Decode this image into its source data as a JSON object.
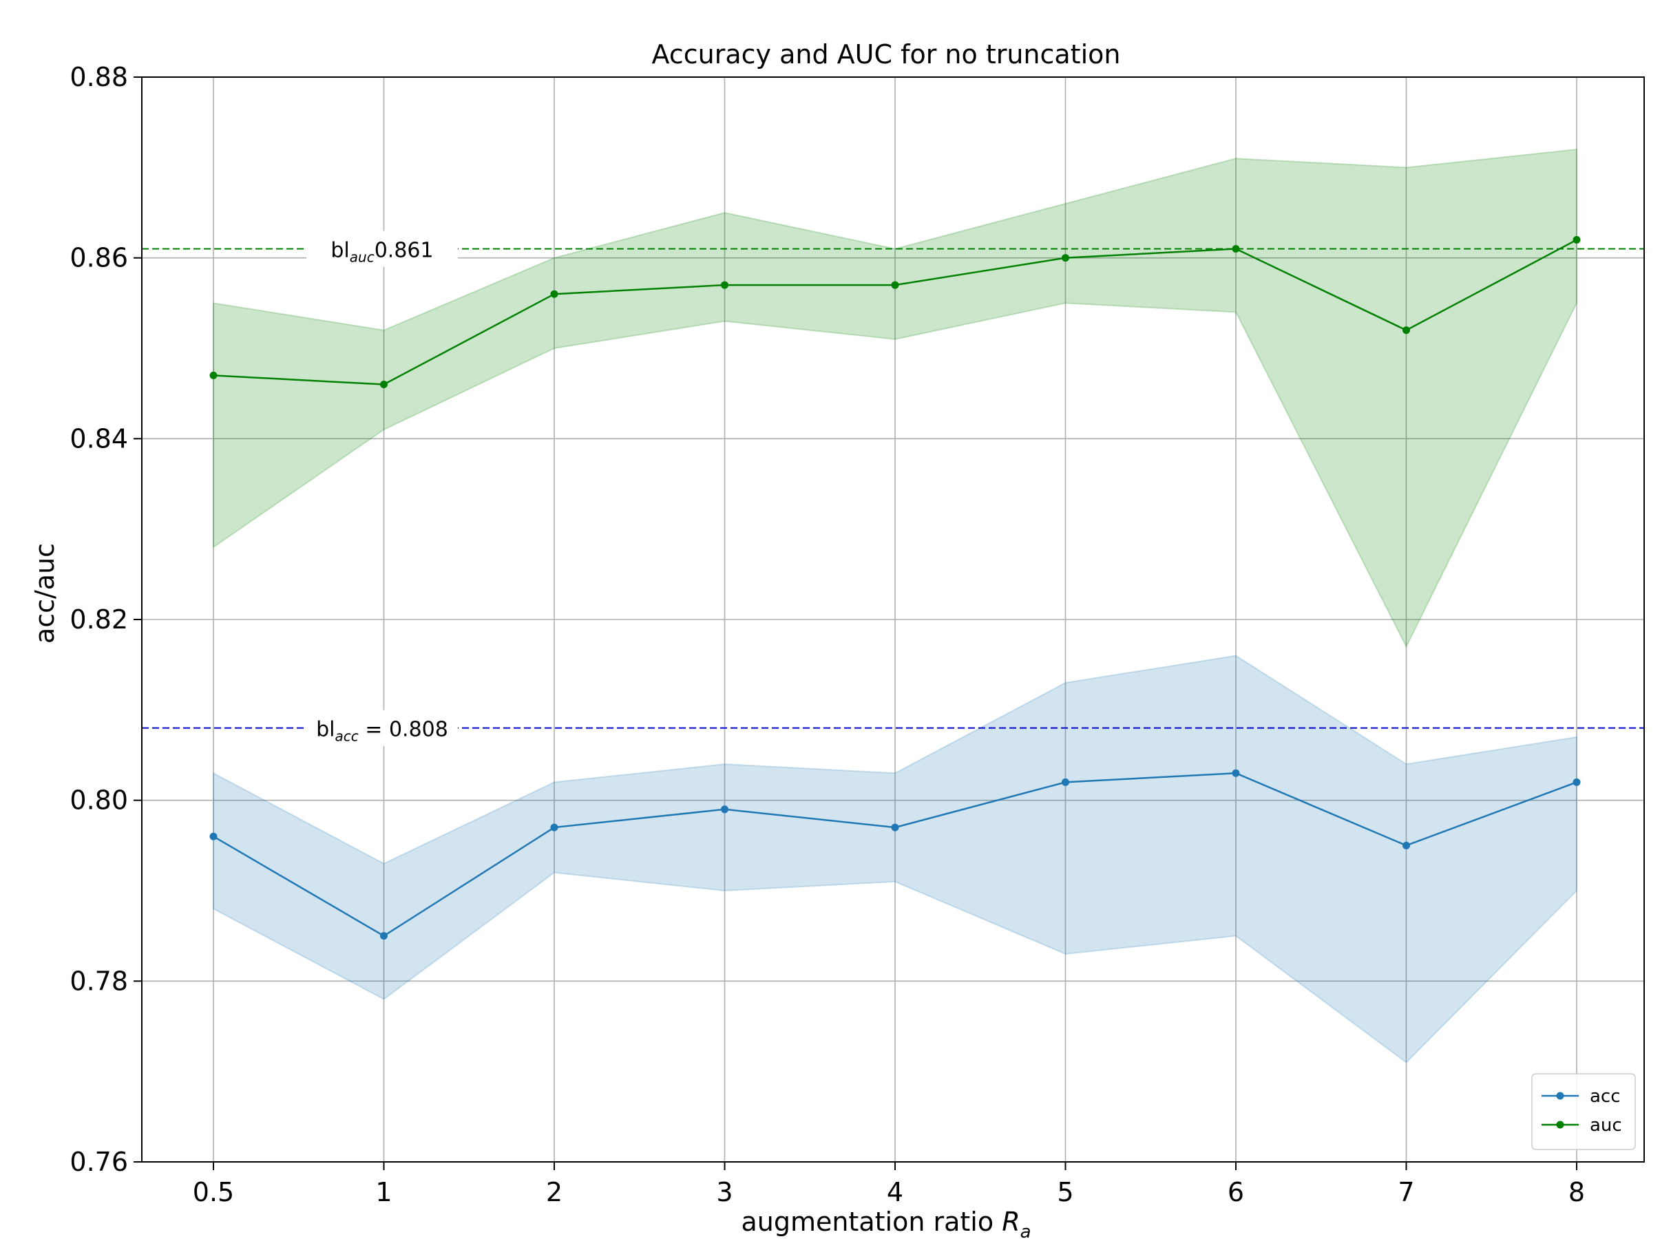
{
  "chart_data": {
    "type": "line",
    "title": "Accuracy and AUC for no truncation",
    "xlabel": "augmentation ratio",
    "xlabel_symbol": "R",
    "xlabel_subscript": "a",
    "ylabel": "acc/auc",
    "categories": [
      "0.5",
      "1",
      "2",
      "3",
      "4",
      "5",
      "6",
      "7",
      "8"
    ],
    "ylim": [
      0.76,
      0.88
    ],
    "yticks": [
      "0.76",
      "0.78",
      "0.80",
      "0.82",
      "0.84",
      "0.86",
      "0.88"
    ],
    "grid": true,
    "legend_position": "lower-right",
    "series": [
      {
        "name": "acc",
        "color": "#1f77b4",
        "values": [
          0.796,
          0.785,
          0.797,
          0.799,
          0.797,
          0.802,
          0.803,
          0.795,
          0.802
        ],
        "band_lower": [
          0.788,
          0.778,
          0.792,
          0.79,
          0.791,
          0.783,
          0.785,
          0.771,
          0.79
        ],
        "band_upper": [
          0.803,
          0.793,
          0.802,
          0.804,
          0.803,
          0.813,
          0.816,
          0.804,
          0.807
        ]
      },
      {
        "name": "auc",
        "color": "#008000",
        "values": [
          0.847,
          0.846,
          0.856,
          0.857,
          0.857,
          0.86,
          0.861,
          0.852,
          0.862
        ],
        "band_lower": [
          0.828,
          0.841,
          0.85,
          0.853,
          0.851,
          0.855,
          0.854,
          0.817,
          0.855
        ],
        "band_upper": [
          0.855,
          0.852,
          0.86,
          0.865,
          0.861,
          0.866,
          0.871,
          0.87,
          0.872
        ]
      }
    ],
    "baselines": [
      {
        "name": "auc baseline",
        "value": 0.861,
        "color": "#008000",
        "prefix": "bl",
        "subscript": "auc",
        "suffix": "0.861"
      },
      {
        "name": "acc baseline",
        "value": 0.808,
        "color": "#0000cc",
        "prefix": "bl",
        "subscript": "acc",
        "suffix": " = 0.808"
      }
    ]
  }
}
